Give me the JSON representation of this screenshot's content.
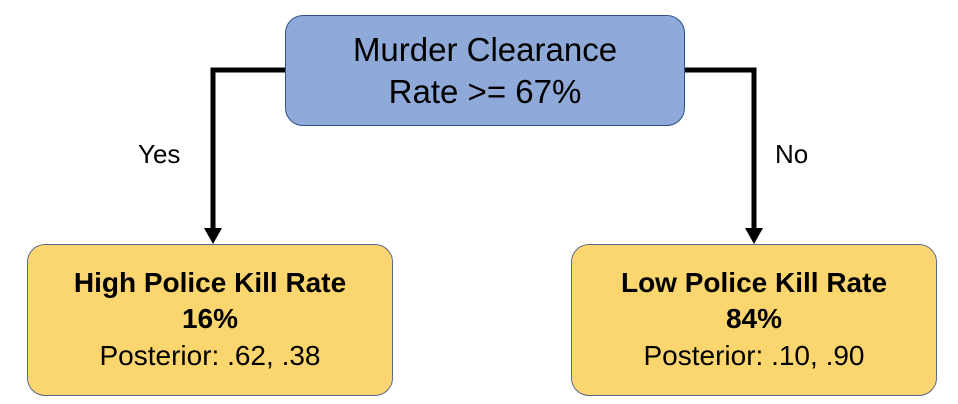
{
  "root": {
    "line1": "Murder Clearance",
    "line2": "Rate >= 67%"
  },
  "branches": {
    "yes": "Yes",
    "no": "No"
  },
  "leaves": [
    {
      "title": "High Police Kill Rate",
      "percent": "16%",
      "posterior": "Posterior: .62, .38"
    },
    {
      "title": "Low Police Kill Rate",
      "percent": "84%",
      "posterior": "Posterior: .10, .90"
    }
  ],
  "colors": {
    "root_fill": "#8fa9d8",
    "leaf_fill": "#fbd56e",
    "connector": "#000000"
  }
}
